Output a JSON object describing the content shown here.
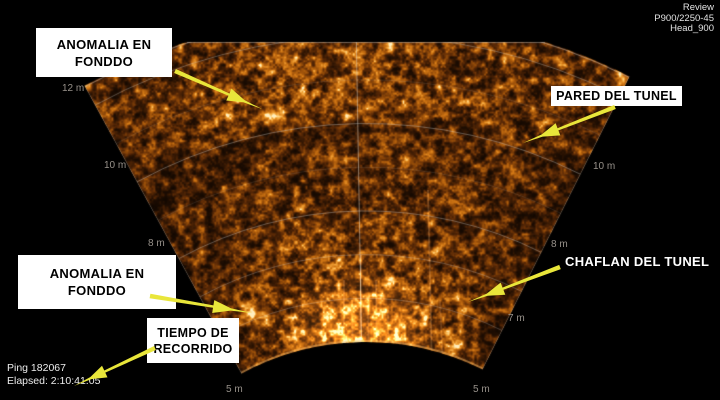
{
  "window": {
    "app_title": "Review"
  },
  "header_lines": [
    "Review",
    "P900/2250-45",
    "Head_900"
  ],
  "footer": {
    "ping": "Ping 182067",
    "elapsed": "Elapsed: 2:10:41.05"
  },
  "callouts": {
    "anomalia_top": {
      "line1": "ANOMALIA EN",
      "line2": "FONDDO"
    },
    "pared": {
      "label": "PARED DEL TUNEL"
    },
    "anomalia_bottom": {
      "line1": "ANOMALIA EN",
      "line2": "FONDDO"
    },
    "tiempo": {
      "line1": "TIEMPO DE",
      "line2": "RECORRIDO"
    },
    "chaflan": {
      "label": "CHAFLAN DEL TUNEL"
    }
  },
  "ranges": {
    "left": [
      "12 m",
      "10 m",
      "8 m",
      "5 m"
    ],
    "right": [
      "10 m",
      "8 m",
      "7 m",
      "5 m"
    ]
  },
  "colors": {
    "background": "#000000",
    "arrow_yellow": "#e9e63a",
    "callout_box_bg": "#ffffff",
    "callout_box_text": "#000000",
    "range_label_gray": "#97918a",
    "sonar_dark": "#200f02",
    "sonar_mid": "#c06a10",
    "sonar_bright": "#ffd9a0"
  }
}
